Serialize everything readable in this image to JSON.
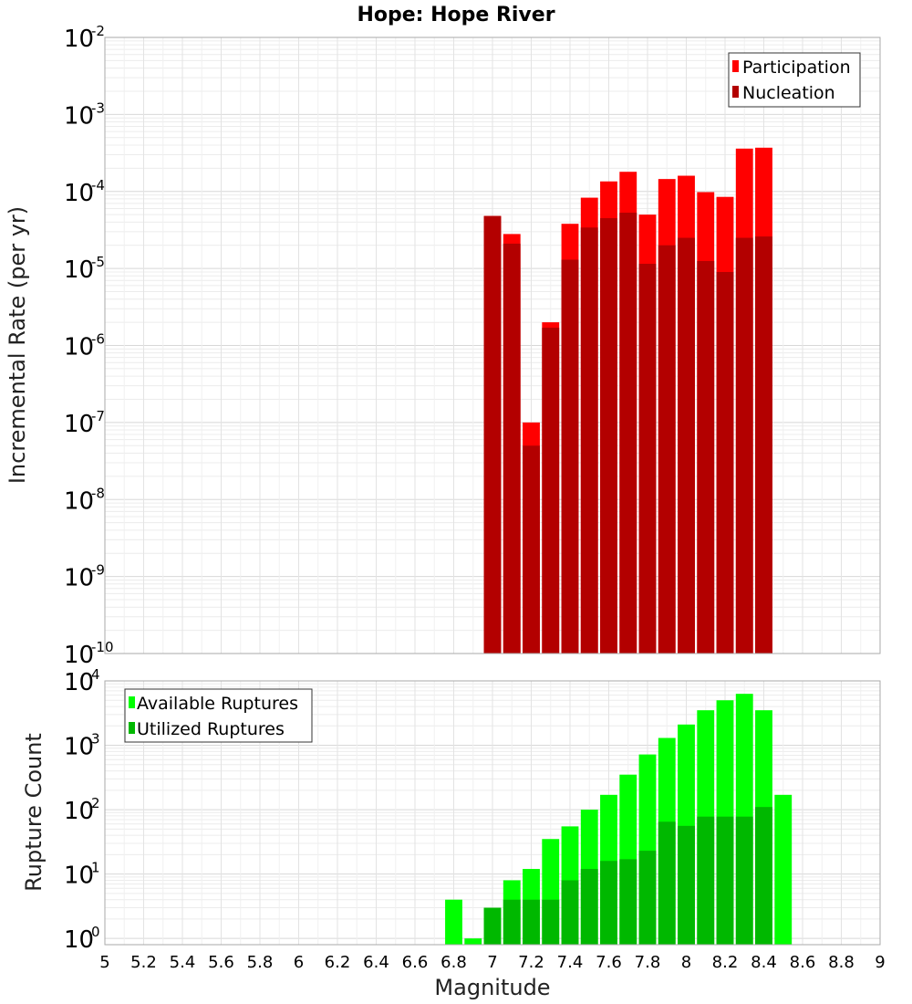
{
  "chart_data": [
    {
      "type": "bar",
      "title": "Hope: Hope River",
      "xlabel": "Magnitude",
      "ylabel": "Incremental Rate (per yr)",
      "y_scale": "log",
      "ylim": [
        1e-10,
        0.01
      ],
      "xlim": [
        5,
        9
      ],
      "y_tick_base": "10",
      "y_tick_exponents": [
        "-10",
        "-9",
        "-8",
        "-7",
        "-6",
        "-5",
        "-4",
        "-3",
        "-2"
      ],
      "grid": true,
      "legend_position": "top-right",
      "x": [
        7.0,
        7.1,
        7.2,
        7.3,
        7.4,
        7.5,
        7.6,
        7.7,
        7.8,
        7.9,
        8.0,
        8.1,
        8.2,
        8.3,
        8.4
      ],
      "series": [
        {
          "name": "Participation",
          "color": "#ff0000",
          "values": [
            4.8e-05,
            2.8e-05,
            1e-07,
            2e-06,
            3.8e-05,
            8.3e-05,
            0.000135,
            0.00018,
            5e-05,
            0.000145,
            0.00016,
            9.8e-05,
            8.5e-05,
            0.00036,
            0.00037
          ]
        },
        {
          "name": "Nucleation",
          "color": "#b30000",
          "values": [
            4.8e-05,
            2.1e-05,
            5e-08,
            1.7e-06,
            1.3e-05,
            3.4e-05,
            4.5e-05,
            5.3e-05,
            1.15e-05,
            2e-05,
            2.5e-05,
            1.25e-05,
            9e-06,
            2.5e-05,
            2.6e-05
          ]
        }
      ]
    },
    {
      "type": "bar",
      "xlabel": "Magnitude",
      "ylabel": "Rupture Count",
      "y_scale": "log",
      "ylim": [
        0.8,
        10000
      ],
      "xlim": [
        5,
        9
      ],
      "x_ticks": [
        "5",
        "5.2",
        "5.4",
        "5.6",
        "5.8",
        "6",
        "6.2",
        "6.4",
        "6.6",
        "6.8",
        "7",
        "7.2",
        "7.4",
        "7.6",
        "7.8",
        "8",
        "8.2",
        "8.4",
        "8.6",
        "8.8",
        "9"
      ],
      "y_tick_base": "10",
      "y_tick_exponents": [
        "0",
        "1",
        "2",
        "3",
        "4"
      ],
      "grid": true,
      "legend_position": "top-left",
      "x": [
        6.8,
        6.9,
        7.0,
        7.1,
        7.2,
        7.3,
        7.4,
        7.5,
        7.6,
        7.7,
        7.8,
        7.9,
        8.0,
        8.1,
        8.2,
        8.3,
        8.4,
        8.5
      ],
      "series": [
        {
          "name": "Available Ruptures",
          "color": "#00ff00",
          "values": [
            4,
            1,
            3,
            8,
            12,
            35,
            55,
            100,
            170,
            350,
            720,
            1300,
            2100,
            3500,
            5000,
            6300,
            3500,
            170
          ]
        },
        {
          "name": "Utilized Ruptures",
          "color": "#00b800",
          "values": [
            0,
            0,
            3,
            4,
            4,
            4,
            8,
            12,
            16,
            17,
            23,
            65,
            56,
            78,
            78,
            78,
            110,
            0
          ]
        }
      ]
    }
  ]
}
